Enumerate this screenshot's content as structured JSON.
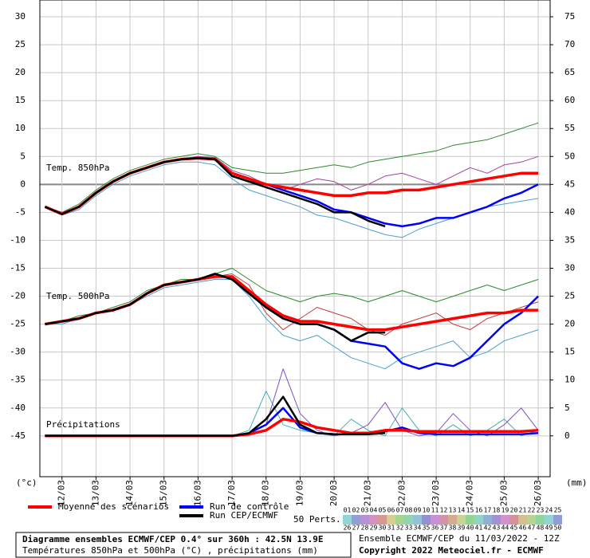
{
  "chart_data": {
    "type": "line",
    "title": "Diagramme ensembles ECMWF/CEP 0.4° sur 360h : 42.5N 13.9E",
    "subtitle": "Températures 850hPa et 500hPa (°C) , précipitations (mm)",
    "run_info": "Ensemble ECMWF/CEP du 11/03/2022 - 12Z",
    "copyright": "Copyright 2022 Meteociel.fr - ECMWF",
    "ylabel": "(°c)",
    "y2label": "(mm)",
    "annotations": [
      "Temp. 850hPa",
      "Temp. 500hPa",
      "Précipitations"
    ],
    "perts_label": "50 Perts.",
    "members_top": [
      "01",
      "02",
      "03",
      "04",
      "05",
      "06",
      "07",
      "08",
      "09",
      "10",
      "11",
      "12",
      "13",
      "14",
      "15",
      "16",
      "17",
      "18",
      "19",
      "20",
      "21",
      "22",
      "23",
      "24",
      "25"
    ],
    "members_bottom": [
      "26",
      "27",
      "28",
      "29",
      "30",
      "31",
      "32",
      "33",
      "34",
      "35",
      "36",
      "37",
      "38",
      "39",
      "40",
      "41",
      "42",
      "43",
      "44",
      "45",
      "46",
      "47",
      "48",
      "49",
      "50"
    ],
    "legend": [
      {
        "name": "Moyenne des scénarios",
        "color": "#ff0000"
      },
      {
        "name": "Run de contrôle",
        "color": "#0000ff"
      },
      {
        "name": "Run CEP/ECMWF",
        "color": "#000000"
      }
    ],
    "grid": true,
    "xlim": [
      11.35,
      26.35
    ],
    "ylim": [
      -52.3,
      33
    ],
    "y2lim": [
      -7.3,
      78
    ],
    "xticks": [
      {
        "value": 12,
        "label": "12/03"
      },
      {
        "value": 13,
        "label": "13/03"
      },
      {
        "value": 14,
        "label": "14/03"
      },
      {
        "value": 15,
        "label": "15/03"
      },
      {
        "value": 16,
        "label": "16/03"
      },
      {
        "value": 17,
        "label": "17/03"
      },
      {
        "value": 18,
        "label": "18/03"
      },
      {
        "value": 19,
        "label": "19/03"
      },
      {
        "value": 20,
        "label": "20/03"
      },
      {
        "value": 21,
        "label": "21/03"
      },
      {
        "value": 22,
        "label": "22/03"
      },
      {
        "value": 23,
        "label": "23/03"
      },
      {
        "value": 24,
        "label": "24/03"
      },
      {
        "value": 25,
        "label": "25/03"
      },
      {
        "value": 26,
        "label": "26/03"
      }
    ],
    "yticks": [
      -45,
      -40,
      -35,
      -30,
      -25,
      -20,
      -15,
      -10,
      -5,
      0,
      5,
      10,
      15,
      20,
      25,
      30
    ],
    "y2ticks": [
      0,
      5,
      10,
      15,
      20,
      25,
      30,
      35,
      40,
      45,
      50,
      55,
      60,
      65,
      70,
      75
    ],
    "x": [
      11.5,
      12,
      12.5,
      13,
      13.5,
      14,
      14.5,
      15,
      15.5,
      16,
      16.5,
      17,
      17.5,
      18,
      18.5,
      19,
      19.5,
      20,
      20.5,
      21,
      21.5,
      22,
      22.5,
      23,
      23.5,
      24,
      24.5,
      25,
      25.5,
      26
    ],
    "series": [
      {
        "color": "#2a8a2a",
        "width": 1,
        "values": [
          -4,
          -5,
          -3.5,
          -1,
          1,
          2.5,
          3.5,
          4.5,
          5,
          5.5,
          5,
          3,
          2.5,
          2,
          2,
          2.5,
          3,
          3.5,
          3,
          4,
          4.5,
          5,
          5.5,
          6,
          7,
          7.5,
          8,
          9,
          10,
          11
        ]
      },
      {
        "color": "#4aa0d0",
        "width": 1,
        "values": [
          -4,
          -5.5,
          -4.5,
          -2,
          0,
          1.5,
          2.5,
          3.5,
          4,
          4,
          3.5,
          1,
          -1,
          -2,
          -3,
          -4,
          -5.5,
          -6,
          -7,
          -8,
          -9,
          -9.5,
          -8,
          -7,
          -6,
          -5,
          -4,
          -3.5,
          -3,
          -2.5
        ]
      },
      {
        "color": "#a040a0",
        "width": 1,
        "values": [
          -4,
          -5,
          -4,
          -1.5,
          0.5,
          2,
          3,
          4,
          4.5,
          5,
          4.8,
          2.5,
          1.5,
          0,
          -1,
          0,
          1,
          0.5,
          -1,
          0,
          1.5,
          2,
          1,
          0,
          1.5,
          3,
          2,
          3.5,
          4,
          5
        ]
      },
      {
        "color": "#2a8a2a",
        "width": 1,
        "values": [
          -25,
          -24.5,
          -23.5,
          -23,
          -22,
          -21,
          -19,
          -18,
          -17,
          -17,
          -16,
          -15,
          -17,
          -19,
          -20,
          -21,
          -20,
          -19.5,
          -20,
          -21,
          -20,
          -19,
          -20,
          -21,
          -20,
          -19,
          -18,
          -19,
          -18,
          -17
        ]
      },
      {
        "color": "#4aa0d0",
        "width": 1,
        "values": [
          -25,
          -25,
          -24,
          -23,
          -22.5,
          -21.5,
          -20,
          -18.5,
          -18,
          -17.5,
          -17,
          -17,
          -20,
          -24,
          -27,
          -28,
          -27,
          -29,
          -31,
          -32,
          -33,
          -31,
          -30,
          -29,
          -28,
          -31,
          -30,
          -28,
          -27,
          -26
        ]
      },
      {
        "color": "#c04040",
        "width": 1,
        "values": [
          -25,
          -24.5,
          -24,
          -23,
          -22.5,
          -21.5,
          -19.5,
          -18,
          -17.5,
          -17,
          -16.5,
          -16,
          -18,
          -23,
          -26,
          -24,
          -22,
          -23,
          -24,
          -26,
          -27,
          -25,
          -24,
          -23,
          -25,
          -26,
          -24,
          -23,
          -22,
          -21
        ]
      },
      {
        "color": "#40b0b0",
        "width": 1,
        "axis": "y2",
        "values": [
          0,
          0,
          0,
          0,
          0,
          0,
          0,
          0,
          0,
          0,
          0,
          0,
          1,
          8,
          2,
          1,
          0.5,
          0,
          3,
          1,
          0,
          5,
          1,
          0,
          2,
          0,
          1,
          3,
          0,
          1
        ]
      },
      {
        "color": "#8050c0",
        "width": 1,
        "axis": "y2",
        "values": [
          0,
          0,
          0,
          0,
          0,
          0,
          0,
          0,
          0,
          0,
          0,
          0,
          0.5,
          2,
          12,
          4,
          1,
          0,
          0.5,
          2,
          6,
          1,
          0,
          0.5,
          4,
          1,
          0,
          2,
          5,
          1
        ]
      },
      {
        "color": "#0000ff",
        "width": 2.5,
        "values": [
          -4,
          -5.3,
          -4,
          -1.5,
          0.5,
          2,
          3,
          4,
          4.5,
          4.7,
          4.5,
          1.5,
          0.5,
          0,
          -1,
          -2,
          -3,
          -4.5,
          -5,
          -6,
          -7,
          -7.5,
          -7,
          -6,
          -6,
          -5,
          -4,
          -2.5,
          -1.5,
          0
        ]
      },
      {
        "color": "#0000ff",
        "width": 2.5,
        "values": [
          -25,
          -24.5,
          -24,
          -23,
          -22.5,
          -21.5,
          -19.5,
          -18,
          -17.5,
          -17,
          -16,
          -17,
          -19.5,
          -22,
          -24,
          -25,
          -25,
          -26,
          -28,
          -28.5,
          -29,
          -32,
          -33,
          -32,
          -32.5,
          -31,
          -28,
          -25,
          -23,
          -20
        ]
      },
      {
        "color": "#0000ff",
        "width": 2.5,
        "axis": "y2",
        "values": [
          0,
          0,
          0,
          0,
          0,
          0,
          0,
          0,
          0,
          0,
          0,
          0,
          0.5,
          2,
          5,
          1.5,
          0.5,
          0.3,
          0.3,
          0.5,
          0.8,
          1.5,
          0.5,
          0.3,
          0.3,
          0.3,
          0.3,
          0.3,
          0.3,
          0.5
        ]
      },
      {
        "color": "#ff0000",
        "width": 3.5,
        "values": [
          -4,
          -5.3,
          -4,
          -1.5,
          0.5,
          2,
          3,
          4,
          4.5,
          4.7,
          4.5,
          2,
          1,
          0,
          -0.5,
          -1,
          -1.5,
          -2,
          -2,
          -1.5,
          -1.5,
          -1,
          -1,
          -0.5,
          0,
          0.5,
          1,
          1.5,
          2,
          2
        ]
      },
      {
        "color": "#ff0000",
        "width": 3.5,
        "values": [
          -25,
          -24.5,
          -24,
          -23,
          -22.5,
          -21.5,
          -19.5,
          -18,
          -17.5,
          -17,
          -16.5,
          -16.5,
          -19,
          -21.5,
          -23.5,
          -24.5,
          -24.5,
          -25,
          -25.5,
          -26,
          -26,
          -25.5,
          -25,
          -24.5,
          -24,
          -23.5,
          -23,
          -23,
          -22.5,
          -22.5
        ]
      },
      {
        "color": "#ff0000",
        "width": 3.5,
        "axis": "y2",
        "values": [
          0,
          0,
          0,
          0,
          0,
          0,
          0,
          0,
          0,
          0,
          0,
          0,
          0.3,
          1,
          3,
          2.5,
          1.5,
          1,
          0.5,
          0.5,
          1,
          1,
          0.8,
          0.8,
          0.8,
          0.8,
          0.8,
          0.8,
          0.8,
          1
        ]
      },
      {
        "color": "#000000",
        "width": 2.5,
        "values": [
          -4,
          -5.3,
          -4,
          -1.5,
          0.5,
          2,
          3,
          4,
          4.5,
          4.7,
          4.5,
          1.5,
          0.5,
          -0.5,
          -1.5,
          -2.5,
          -3.5,
          -5,
          -5,
          -6.5,
          -7.5,
          null,
          null,
          null,
          null,
          null,
          null,
          null,
          null,
          null
        ]
      },
      {
        "color": "#000000",
        "width": 2.5,
        "values": [
          -25,
          -24.5,
          -24,
          -23,
          -22.5,
          -21.5,
          -19.5,
          -18,
          -17.5,
          -17,
          -16,
          -17,
          -19.5,
          -22,
          -24,
          -25,
          -25,
          -26,
          -28,
          -26.5,
          -26.5,
          null,
          null,
          null,
          null,
          null,
          null,
          null,
          null,
          null
        ]
      },
      {
        "color": "#000000",
        "width": 2.5,
        "axis": "y2",
        "values": [
          0,
          0,
          0,
          0,
          0,
          0,
          0,
          0,
          0,
          0,
          0,
          0,
          0.5,
          3,
          7,
          2,
          0.5,
          0.3,
          0.3,
          0.3,
          0.5,
          null,
          null,
          null,
          null,
          null,
          null,
          null,
          null,
          null
        ]
      }
    ]
  }
}
